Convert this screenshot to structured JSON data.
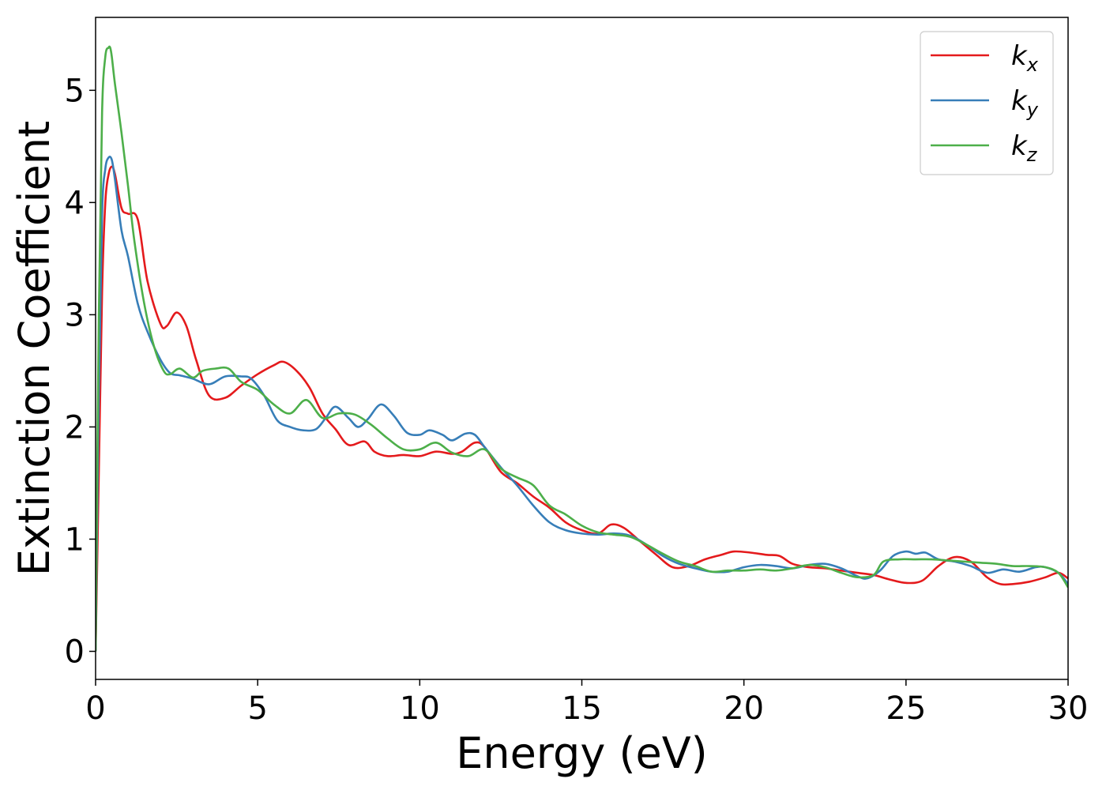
{
  "chart_data": {
    "type": "line",
    "title": "",
    "xlabel": "Energy (eV)",
    "ylabel": "Extinction Coefficient",
    "xlim": [
      0,
      30
    ],
    "ylim": [
      -0.25,
      5.65
    ],
    "xticks": [
      0,
      5,
      10,
      15,
      20,
      25,
      30
    ],
    "yticks": [
      0,
      1,
      2,
      3,
      4,
      5
    ],
    "grid": false,
    "legend_position": "top-right",
    "series": [
      {
        "name": "k",
        "subscript": "x",
        "color": "#e41a1c",
        "x": [
          0,
          0.1,
          0.2,
          0.3,
          0.4,
          0.5,
          0.6,
          0.8,
          1.0,
          1.3,
          1.6,
          2.0,
          2.2,
          2.5,
          2.8,
          3.1,
          3.5,
          4.0,
          4.5,
          5.0,
          5.5,
          5.8,
          6.2,
          6.6,
          7.0,
          7.4,
          7.8,
          8.3,
          8.6,
          9.0,
          9.5,
          10.0,
          10.5,
          11.0,
          11.3,
          11.7,
          12.0,
          12.5,
          13.0,
          13.5,
          14.0,
          14.5,
          15.0,
          15.5,
          15.9,
          16.3,
          16.8,
          17.3,
          17.8,
          18.3,
          18.8,
          19.3,
          19.7,
          20.2,
          20.7,
          21.1,
          21.5,
          22.0,
          22.5,
          23.0,
          23.5,
          24.0,
          24.5,
          25.0,
          25.5,
          26.0,
          26.5,
          27.0,
          27.5,
          27.9,
          28.3,
          28.8,
          29.3,
          29.7,
          30.0
        ],
        "y": [
          0,
          1.6,
          3.2,
          4.0,
          4.25,
          4.32,
          4.25,
          3.95,
          3.9,
          3.85,
          3.3,
          2.92,
          2.9,
          3.02,
          2.9,
          2.6,
          2.28,
          2.26,
          2.37,
          2.47,
          2.55,
          2.58,
          2.5,
          2.35,
          2.12,
          1.98,
          1.84,
          1.87,
          1.78,
          1.74,
          1.75,
          1.74,
          1.78,
          1.76,
          1.78,
          1.86,
          1.82,
          1.6,
          1.5,
          1.38,
          1.28,
          1.15,
          1.08,
          1.05,
          1.13,
          1.1,
          0.98,
          0.86,
          0.75,
          0.76,
          0.82,
          0.86,
          0.89,
          0.88,
          0.86,
          0.85,
          0.78,
          0.75,
          0.74,
          0.72,
          0.7,
          0.68,
          0.64,
          0.61,
          0.63,
          0.76,
          0.84,
          0.8,
          0.66,
          0.6,
          0.6,
          0.62,
          0.66,
          0.7,
          0.65
        ]
      },
      {
        "name": "k",
        "subscript": "y",
        "color": "#377eb8",
        "x": [
          0,
          0.1,
          0.2,
          0.3,
          0.4,
          0.5,
          0.6,
          0.8,
          1.0,
          1.3,
          1.6,
          2.0,
          2.3,
          2.6,
          3.0,
          3.5,
          4.0,
          4.5,
          4.8,
          5.2,
          5.6,
          6.0,
          6.4,
          6.8,
          7.1,
          7.4,
          7.8,
          8.1,
          8.4,
          8.8,
          9.2,
          9.6,
          10.0,
          10.3,
          10.7,
          11.0,
          11.4,
          11.7,
          12.0,
          12.5,
          13.0,
          13.5,
          14.0,
          14.5,
          15.0,
          15.5,
          16.0,
          16.5,
          17.0,
          17.5,
          18.0,
          18.5,
          19.0,
          19.5,
          20.0,
          20.5,
          21.0,
          21.5,
          22.0,
          22.5,
          23.0,
          23.5,
          23.8,
          24.2,
          24.6,
          25.0,
          25.3,
          25.6,
          26.0,
          26.5,
          27.0,
          27.5,
          28.0,
          28.5,
          29.0,
          29.3,
          29.7,
          30.0
        ],
        "y": [
          0,
          2.3,
          3.9,
          4.3,
          4.4,
          4.38,
          4.2,
          3.75,
          3.52,
          3.1,
          2.85,
          2.6,
          2.48,
          2.46,
          2.43,
          2.38,
          2.45,
          2.45,
          2.43,
          2.28,
          2.06,
          2.0,
          1.97,
          1.98,
          2.08,
          2.18,
          2.08,
          2.0,
          2.07,
          2.2,
          2.1,
          1.95,
          1.93,
          1.97,
          1.93,
          1.88,
          1.94,
          1.93,
          1.82,
          1.64,
          1.48,
          1.3,
          1.15,
          1.08,
          1.05,
          1.04,
          1.05,
          1.03,
          0.95,
          0.85,
          0.78,
          0.74,
          0.71,
          0.71,
          0.75,
          0.77,
          0.76,
          0.74,
          0.77,
          0.78,
          0.74,
          0.67,
          0.65,
          0.72,
          0.85,
          0.89,
          0.87,
          0.88,
          0.82,
          0.8,
          0.76,
          0.7,
          0.73,
          0.71,
          0.75,
          0.75,
          0.7,
          0.6
        ]
      },
      {
        "name": "k",
        "subscript": "z",
        "color": "#4daf4a",
        "x": [
          0,
          0.1,
          0.2,
          0.3,
          0.4,
          0.45,
          0.5,
          0.6,
          0.8,
          1.0,
          1.2,
          1.5,
          1.8,
          2.1,
          2.3,
          2.6,
          3.0,
          3.3,
          3.7,
          4.1,
          4.5,
          5.0,
          5.5,
          6.0,
          6.5,
          7.0,
          7.5,
          8.0,
          8.5,
          9.0,
          9.5,
          10.0,
          10.5,
          11.0,
          11.5,
          12.0,
          12.5,
          13.0,
          13.5,
          14.0,
          14.5,
          15.0,
          15.5,
          16.0,
          16.5,
          17.0,
          17.5,
          18.0,
          18.5,
          19.0,
          19.5,
          20.0,
          20.5,
          21.0,
          21.5,
          22.0,
          22.5,
          23.0,
          23.5,
          24.0,
          24.3,
          24.8,
          25.3,
          25.8,
          26.3,
          26.8,
          27.3,
          27.8,
          28.3,
          28.8,
          29.3,
          29.7,
          30.0
        ],
        "y": [
          0,
          3.0,
          4.8,
          5.3,
          5.38,
          5.38,
          5.3,
          5.05,
          4.62,
          4.15,
          3.65,
          3.1,
          2.72,
          2.5,
          2.47,
          2.52,
          2.44,
          2.5,
          2.52,
          2.52,
          2.4,
          2.33,
          2.2,
          2.12,
          2.24,
          2.08,
          2.12,
          2.11,
          2.02,
          1.9,
          1.8,
          1.8,
          1.86,
          1.77,
          1.74,
          1.8,
          1.63,
          1.55,
          1.48,
          1.3,
          1.22,
          1.12,
          1.06,
          1.04,
          1.02,
          0.95,
          0.87,
          0.8,
          0.76,
          0.71,
          0.72,
          0.72,
          0.73,
          0.72,
          0.74,
          0.77,
          0.75,
          0.7,
          0.66,
          0.68,
          0.8,
          0.82,
          0.82,
          0.82,
          0.81,
          0.8,
          0.79,
          0.78,
          0.76,
          0.76,
          0.75,
          0.7,
          0.57
        ]
      }
    ]
  }
}
